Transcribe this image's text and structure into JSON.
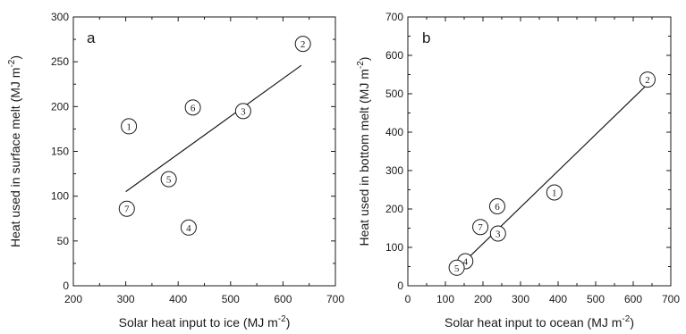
{
  "chart_data": [
    {
      "type": "scatter",
      "panel_label": "a",
      "xlabel": "Solar heat input to ice (MJ m",
      "xlabel_sup": "-2",
      "xlabel_end": ")",
      "ylabel": "Heat used in surface melt (MJ m",
      "ylabel_sup": "-2",
      "ylabel_end": ")",
      "xlim": [
        200,
        700
      ],
      "ylim": [
        0,
        300
      ],
      "xticks": [
        200,
        300,
        400,
        500,
        600,
        700
      ],
      "yticks": [
        0,
        50,
        100,
        150,
        200,
        250,
        300
      ],
      "points": [
        {
          "label": "1",
          "x": 306,
          "y": 178
        },
        {
          "label": "2",
          "x": 638,
          "y": 270
        },
        {
          "label": "3",
          "x": 524,
          "y": 195
        },
        {
          "label": "4",
          "x": 420,
          "y": 65
        },
        {
          "label": "5",
          "x": 382,
          "y": 119
        },
        {
          "label": "6",
          "x": 428,
          "y": 199
        },
        {
          "label": "7",
          "x": 302,
          "y": 86
        }
      ],
      "fit_line": {
        "x": [
          300,
          635
        ],
        "y": [
          105,
          246
        ]
      }
    },
    {
      "type": "scatter",
      "panel_label": "b",
      "xlabel": "Solar heat input to ocean (MJ m",
      "xlabel_sup": "-2",
      "xlabel_end": ")",
      "ylabel": "Heat used in bottom melt (MJ m",
      "ylabel_sup": "-2",
      "ylabel_end": ")",
      "xlim": [
        0,
        700
      ],
      "ylim": [
        0,
        700
      ],
      "xticks": [
        0,
        100,
        200,
        300,
        400,
        500,
        600,
        700
      ],
      "yticks": [
        0,
        100,
        200,
        300,
        400,
        500,
        600,
        700
      ],
      "points": [
        {
          "label": "1",
          "x": 390,
          "y": 243
        },
        {
          "label": "2",
          "x": 638,
          "y": 537
        },
        {
          "label": "3",
          "x": 240,
          "y": 136
        },
        {
          "label": "4",
          "x": 153,
          "y": 64
        },
        {
          "label": "5",
          "x": 130,
          "y": 47
        },
        {
          "label": "6",
          "x": 238,
          "y": 207
        },
        {
          "label": "7",
          "x": 193,
          "y": 153
        }
      ],
      "fit_line": {
        "x": [
          135,
          635
        ],
        "y": [
          48,
          522
        ]
      }
    }
  ]
}
